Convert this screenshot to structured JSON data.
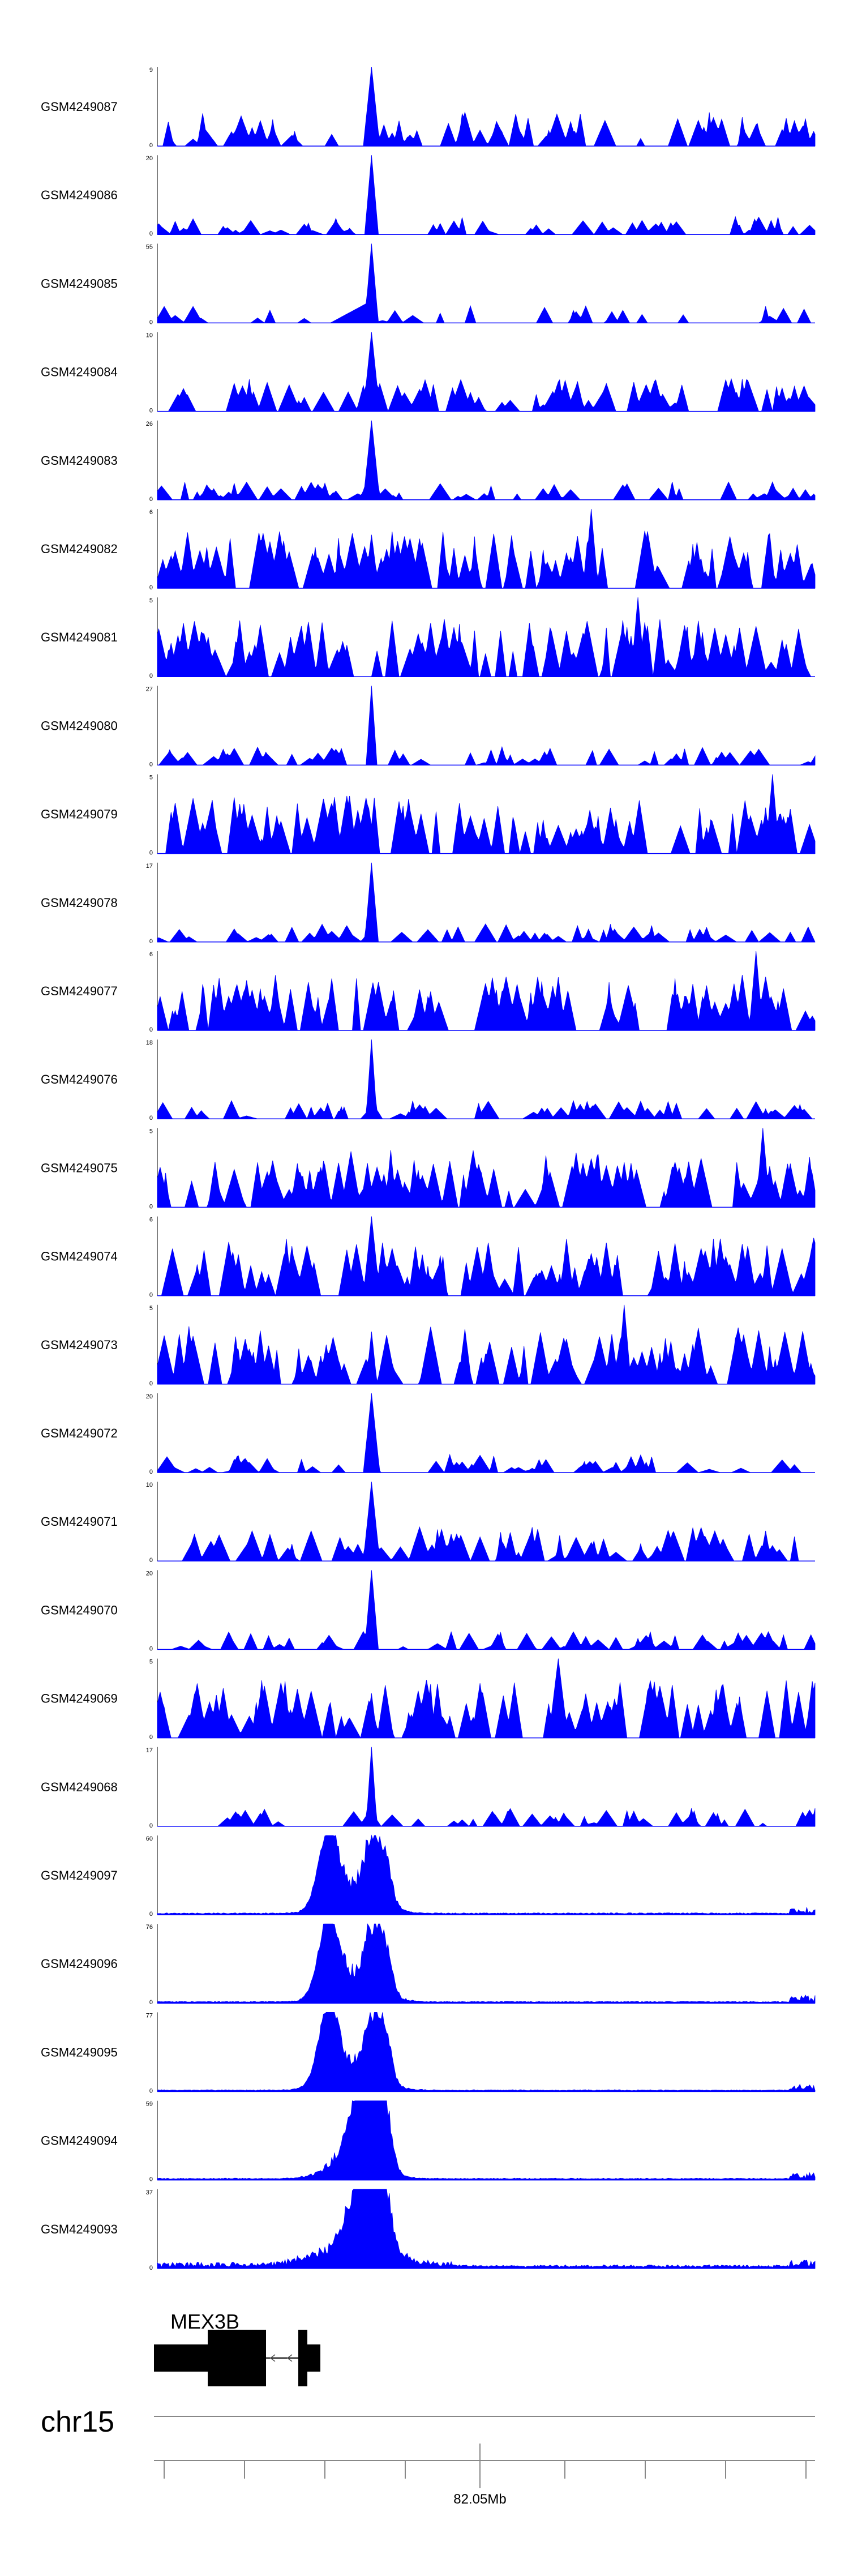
{
  "colors": {
    "signal": "#0000ff",
    "axis": "#000000",
    "gene": "#000000"
  },
  "chart_data": {
    "type": "area",
    "tracks": [
      {
        "name": "GSM4249087",
        "ymax": "9",
        "ymin": "0",
        "peak": 9,
        "peakPos": 0.325,
        "peakWidth": 0.012,
        "style": "sparse",
        "seed": 11
      },
      {
        "name": "GSM4249086",
        "ymax": "20",
        "ymin": "0",
        "peak": 20,
        "peakPos": 0.325,
        "peakWidth": 0.01,
        "style": "lowsparse",
        "seed": 12
      },
      {
        "name": "GSM4249085",
        "ymax": "55",
        "ymin": "0",
        "peak": 55,
        "peakPos": 0.325,
        "peakWidth": 0.01,
        "style": "ramp",
        "seed": 13
      },
      {
        "name": "GSM4249084",
        "ymax": "10",
        "ymin": "0",
        "peak": 10,
        "peakPos": 0.325,
        "peakWidth": 0.012,
        "style": "sparse",
        "seed": 14
      },
      {
        "name": "GSM4249083",
        "ymax": "26",
        "ymin": "0",
        "peak": 26,
        "peakPos": 0.325,
        "peakWidth": 0.012,
        "style": "lowsparse",
        "seed": 15
      },
      {
        "name": "GSM4249082",
        "ymax": "6",
        "ymin": "0",
        "peak": 6,
        "peakPos": 0.66,
        "peakWidth": 0.01,
        "style": "dense",
        "seed": 16
      },
      {
        "name": "GSM4249081",
        "ymax": "5",
        "ymin": "0",
        "peak": 5,
        "peakPos": 0.73,
        "peakWidth": 0.01,
        "style": "dense",
        "seed": 17
      },
      {
        "name": "GSM4249080",
        "ymax": "27",
        "ymin": "0",
        "peak": 27,
        "peakPos": 0.325,
        "peakWidth": 0.008,
        "style": "lowsparse",
        "seed": 18
      },
      {
        "name": "GSM4249079",
        "ymax": "5",
        "ymin": "0",
        "peak": 5,
        "peakPos": 0.935,
        "peakWidth": 0.01,
        "style": "dense",
        "seed": 19
      },
      {
        "name": "GSM4249078",
        "ymax": "17",
        "ymin": "0",
        "peak": 17,
        "peakPos": 0.325,
        "peakWidth": 0.01,
        "style": "lowsparse",
        "seed": 20
      },
      {
        "name": "GSM4249077",
        "ymax": "6",
        "ymin": "0",
        "peak": 6,
        "peakPos": 0.91,
        "peakWidth": 0.01,
        "style": "dense",
        "seed": 21
      },
      {
        "name": "GSM4249076",
        "ymax": "18",
        "ymin": "0",
        "peak": 18,
        "peakPos": 0.325,
        "peakWidth": 0.008,
        "style": "lowsparse",
        "seed": 22
      },
      {
        "name": "GSM4249075",
        "ymax": "5",
        "ymin": "0",
        "peak": 5,
        "peakPos": 0.92,
        "peakWidth": 0.01,
        "style": "dense",
        "seed": 23
      },
      {
        "name": "GSM4249074",
        "ymax": "6",
        "ymin": "0",
        "peak": 6,
        "peakPos": 0.325,
        "peakWidth": 0.012,
        "style": "dense",
        "seed": 24
      },
      {
        "name": "GSM4249073",
        "ymax": "5",
        "ymin": "0",
        "peak": 5,
        "peakPos": 0.71,
        "peakWidth": 0.01,
        "style": "dense",
        "seed": 25
      },
      {
        "name": "GSM4249072",
        "ymax": "20",
        "ymin": "0",
        "peak": 20,
        "peakPos": 0.325,
        "peakWidth": 0.012,
        "style": "lowsparse",
        "seed": 26
      },
      {
        "name": "GSM4249071",
        "ymax": "10",
        "ymin": "0",
        "peak": 10,
        "peakPos": 0.325,
        "peakWidth": 0.012,
        "style": "sparse",
        "seed": 27
      },
      {
        "name": "GSM4249070",
        "ymax": "20",
        "ymin": "0",
        "peak": 20,
        "peakPos": 0.325,
        "peakWidth": 0.01,
        "style": "lowsparse",
        "seed": 28
      },
      {
        "name": "GSM4249069",
        "ymax": "5",
        "ymin": "0",
        "peak": 5,
        "peakPos": 0.61,
        "peakWidth": 0.014,
        "style": "dense",
        "seed": 29
      },
      {
        "name": "GSM4249068",
        "ymax": "17",
        "ymin": "0",
        "peak": 17,
        "peakPos": 0.325,
        "peakWidth": 0.008,
        "style": "lowsparse",
        "seed": 30
      },
      {
        "name": "GSM4249097",
        "ymax": "60",
        "ymin": "0",
        "peak": 60,
        "peakPos": 0.26,
        "peakWidth": 0.015,
        "style": "cluster",
        "seed": 31
      },
      {
        "name": "GSM4249096",
        "ymax": "76",
        "ymin": "0",
        "peak": 76,
        "peakPos": 0.26,
        "peakWidth": 0.015,
        "style": "cluster",
        "seed": 32
      },
      {
        "name": "GSM4249095",
        "ymax": "77",
        "ymin": "0",
        "peak": 77,
        "peakPos": 0.26,
        "peakWidth": 0.015,
        "style": "cluster",
        "seed": 33
      },
      {
        "name": "GSM4249094",
        "ymax": "59",
        "ymin": "0",
        "peak": 59,
        "peakPos": 0.315,
        "peakWidth": 0.02,
        "style": "cluster",
        "seed": 34
      },
      {
        "name": "GSM4249093",
        "ymax": "37",
        "ymin": "0",
        "peak": 37,
        "peakPos": 0.315,
        "peakWidth": 0.02,
        "style": "clusterwide",
        "seed": 35
      }
    ],
    "gene": {
      "name": "MEX3B"
    },
    "chromosome": "chr15",
    "coordinate_label": "82.05Mb",
    "grid": false,
    "legend": "none"
  }
}
